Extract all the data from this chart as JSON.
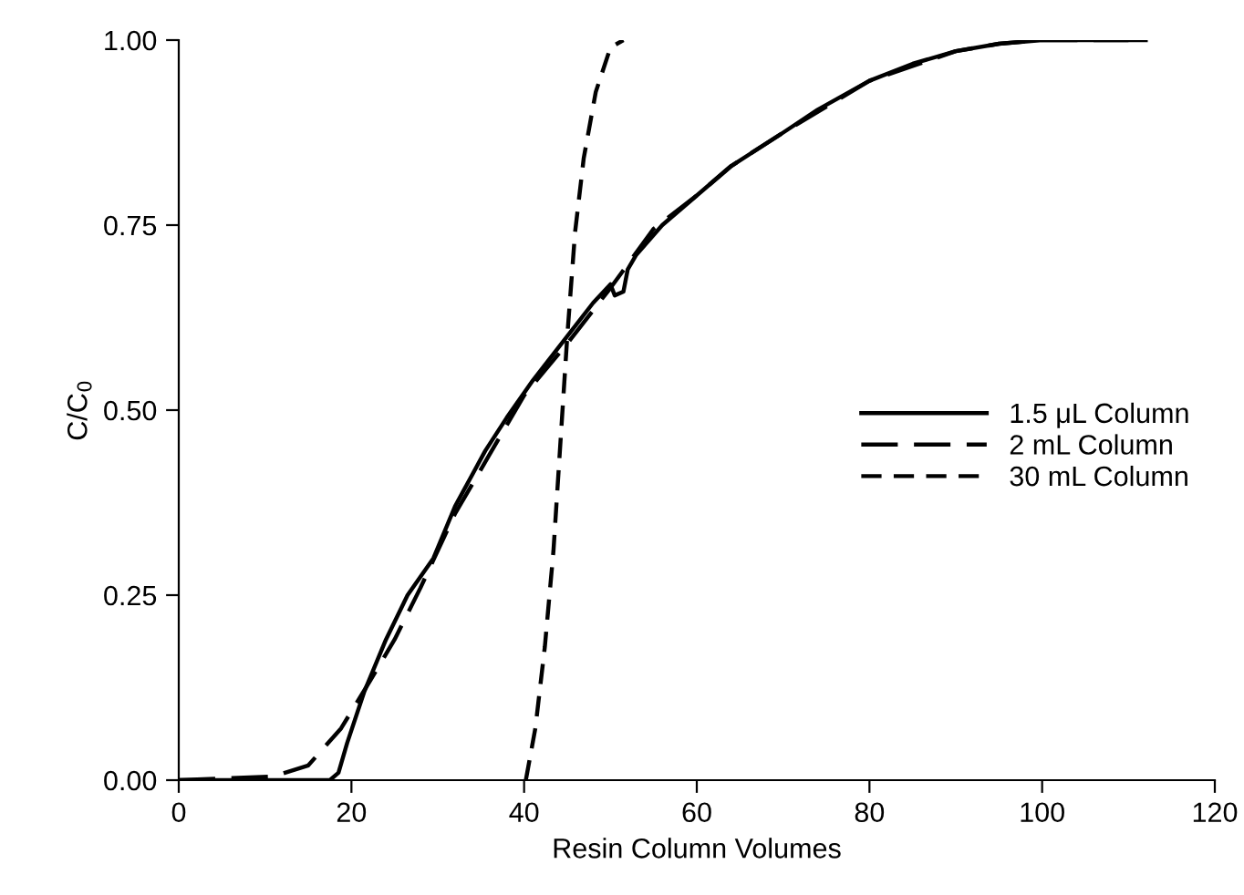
{
  "chart_data": {
    "type": "line",
    "xlabel": "Resin Column Volumes",
    "ylabel": "C/C$_{0}$",
    "xlim": [
      0,
      120
    ],
    "xticks": [
      0,
      20,
      40,
      60,
      80,
      100,
      120
    ],
    "ylim": [
      0,
      1
    ],
    "yticks": [
      {
        "value": 0,
        "label": "0.00"
      },
      {
        "value": 0.25,
        "label": "0.25"
      },
      {
        "value": 0.5,
        "label": "0.50"
      },
      {
        "value": 0.75,
        "label": "0.75"
      },
      {
        "value": 1,
        "label": "1.00"
      }
    ],
    "grid": false,
    "legend": "right",
    "marker": "none",
    "series": [
      {
        "name": "1.5 μL Column",
        "color": "#000000",
        "line_style": "solid",
        "x": [
          0,
          17.5,
          18.5,
          19.5,
          21.5,
          24,
          26.5,
          29.5,
          32,
          35.5,
          38,
          41,
          45,
          48,
          50,
          50.5,
          51.5,
          52,
          53,
          56,
          60,
          64,
          70,
          74,
          80,
          85,
          90,
          95,
          100,
          112
        ],
        "values": [
          0,
          0,
          0.01,
          0.05,
          0.12,
          0.19,
          0.25,
          0.3,
          0.37,
          0.445,
          0.49,
          0.54,
          0.6,
          0.645,
          0.67,
          0.655,
          0.66,
          0.69,
          0.71,
          0.75,
          0.79,
          0.83,
          0.875,
          0.906,
          0.945,
          0.968,
          0.985,
          0.995,
          1.0,
          1.0
        ]
      },
      {
        "name": "2 mL Column",
        "color": "#000000",
        "line_style": "dashed",
        "x": [
          0,
          11,
          15,
          18.8,
          22.2,
          25,
          28,
          32,
          36,
          40,
          45,
          50,
          55,
          60,
          64,
          70,
          75,
          80,
          85,
          90,
          95,
          100,
          110
        ],
        "values": [
          0,
          0.005,
          0.02,
          0.07,
          0.135,
          0.19,
          0.26,
          0.36,
          0.44,
          0.52,
          0.59,
          0.665,
          0.745,
          0.79,
          0.83,
          0.875,
          0.91,
          0.945,
          0.965,
          0.985,
          0.995,
          1.0,
          1.0
        ]
      },
      {
        "name": "30 mL Column",
        "color": "#000000",
        "line_style": "dotted",
        "x": [
          40.2,
          41.3,
          42.4,
          43.4,
          45,
          45.9,
          46.9,
          48.3,
          50,
          51.5
        ],
        "values": [
          0,
          0.07,
          0.18,
          0.31,
          0.6,
          0.74,
          0.84,
          0.93,
          0.99,
          1.0
        ]
      }
    ]
  }
}
